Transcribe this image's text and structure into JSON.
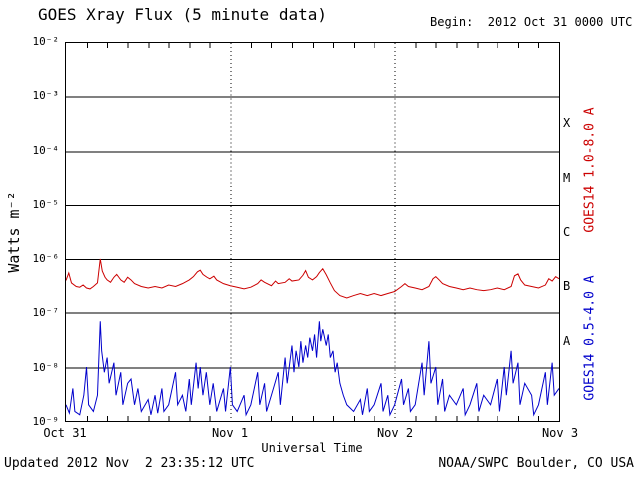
{
  "header": {
    "title": "GOES Xray Flux (5 minute data)",
    "begin_label": "Begin:  2012 Oct 31 0000 UTC"
  },
  "footer": {
    "updated": "Updated 2012 Nov  2 23:35:12 UTC",
    "source": "NOAA/SWPC Boulder, CO USA"
  },
  "chart_data": {
    "type": "line",
    "title": "GOES Xray Flux (5 minute data)",
    "xlabel": "Universal Time",
    "ylabel": "Watts m⁻²",
    "x_unit": "hours since 2012 Oct 31 0000 UTC",
    "xlim": [
      0,
      72
    ],
    "ylim_log10": [
      -9,
      -2
    ],
    "grid": {
      "h_lines_log10": [
        -3,
        -4,
        -5,
        -6,
        -7,
        -8
      ],
      "v_dotted_t": [
        24,
        48
      ],
      "minor_tick_hours": 3
    },
    "y_ticks": [
      {
        "log10": -2,
        "label": "10⁻²"
      },
      {
        "log10": -3,
        "label": "10⁻³"
      },
      {
        "log10": -4,
        "label": "10⁻⁴"
      },
      {
        "log10": -5,
        "label": "10⁻⁵"
      },
      {
        "log10": -6,
        "label": "10⁻⁶"
      },
      {
        "log10": -7,
        "label": "10⁻⁷"
      },
      {
        "log10": -8,
        "label": "10⁻⁸"
      },
      {
        "log10": -9,
        "label": "10⁻⁹"
      }
    ],
    "x_ticks": [
      {
        "t": 0,
        "label": "Oct 31"
      },
      {
        "t": 24,
        "label": "Nov 1"
      },
      {
        "t": 48,
        "label": "Nov 2"
      },
      {
        "t": 72,
        "label": "Nov 3"
      }
    ],
    "flare_classes": [
      {
        "label": "X",
        "log10_mid": -3.5
      },
      {
        "label": "M",
        "log10_mid": -4.5
      },
      {
        "label": "C",
        "log10_mid": -5.5
      },
      {
        "label": "B",
        "log10_mid": -6.5
      },
      {
        "label": "A",
        "log10_mid": -7.5
      }
    ],
    "series": [
      {
        "id": "long",
        "name": "GOES14 1.0-8.0 A",
        "color": "#cc0000",
        "points": [
          [
            0,
            4e-07
          ],
          [
            0.4,
            5.5e-07
          ],
          [
            0.8,
            3.6e-07
          ],
          [
            1.5,
            3.1e-07
          ],
          [
            2,
            3e-07
          ],
          [
            2.5,
            3.3e-07
          ],
          [
            3,
            2.9e-07
          ],
          [
            3.5,
            2.8e-07
          ],
          [
            4,
            3.1e-07
          ],
          [
            4.6,
            3.6e-07
          ],
          [
            5,
            1e-06
          ],
          [
            5.3,
            6e-07
          ],
          [
            5.7,
            4.6e-07
          ],
          [
            6,
            4.1e-07
          ],
          [
            6.5,
            3.7e-07
          ],
          [
            7,
            4.6e-07
          ],
          [
            7.4,
            5.2e-07
          ],
          [
            8,
            4.1e-07
          ],
          [
            8.5,
            3.7e-07
          ],
          [
            9,
            4.6e-07
          ],
          [
            9.5,
            4.1e-07
          ],
          [
            10,
            3.5e-07
          ],
          [
            11,
            3.1e-07
          ],
          [
            12,
            2.9e-07
          ],
          [
            13,
            3.1e-07
          ],
          [
            14,
            2.9e-07
          ],
          [
            15,
            3.3e-07
          ],
          [
            16,
            3.1e-07
          ],
          [
            17,
            3.5e-07
          ],
          [
            18,
            4.1e-07
          ],
          [
            18.6,
            4.7e-07
          ],
          [
            19.2,
            5.8e-07
          ],
          [
            19.6,
            6.2e-07
          ],
          [
            20,
            5.2e-07
          ],
          [
            20.6,
            4.6e-07
          ],
          [
            21,
            4.3e-07
          ],
          [
            21.6,
            4.8e-07
          ],
          [
            22,
            4.1e-07
          ],
          [
            23,
            3.5e-07
          ],
          [
            24,
            3.2e-07
          ],
          [
            25,
            3e-07
          ],
          [
            26,
            2.8e-07
          ],
          [
            27,
            3e-07
          ],
          [
            28,
            3.5e-07
          ],
          [
            28.5,
            4.1e-07
          ],
          [
            29,
            3.7e-07
          ],
          [
            30,
            3.2e-07
          ],
          [
            30.6,
            3.9e-07
          ],
          [
            31,
            3.5e-07
          ],
          [
            32,
            3.7e-07
          ],
          [
            32.6,
            4.3e-07
          ],
          [
            33,
            3.9e-07
          ],
          [
            34,
            4.1e-07
          ],
          [
            34.6,
            5e-07
          ],
          [
            35,
            6.1e-07
          ],
          [
            35.4,
            4.6e-07
          ],
          [
            36,
            4.1e-07
          ],
          [
            36.6,
            4.7e-07
          ],
          [
            37,
            5.6e-07
          ],
          [
            37.5,
            6.6e-07
          ],
          [
            38,
            5.1e-07
          ],
          [
            38.6,
            3.6e-07
          ],
          [
            39.2,
            2.6e-07
          ],
          [
            40,
            2.1e-07
          ],
          [
            41,
            1.9e-07
          ],
          [
            42,
            2.1e-07
          ],
          [
            43,
            2.3e-07
          ],
          [
            44,
            2.1e-07
          ],
          [
            45,
            2.3e-07
          ],
          [
            46,
            2.1e-07
          ],
          [
            47,
            2.3e-07
          ],
          [
            48,
            2.5e-07
          ],
          [
            49,
            3.1e-07
          ],
          [
            49.5,
            3.5e-07
          ],
          [
            50,
            3.1e-07
          ],
          [
            51,
            2.9e-07
          ],
          [
            52,
            2.7e-07
          ],
          [
            53,
            3.1e-07
          ],
          [
            53.6,
            4.3e-07
          ],
          [
            54,
            4.7e-07
          ],
          [
            54.5,
            4.1e-07
          ],
          [
            55,
            3.5e-07
          ],
          [
            56,
            3.1e-07
          ],
          [
            57,
            2.9e-07
          ],
          [
            58,
            2.7e-07
          ],
          [
            59,
            2.9e-07
          ],
          [
            60,
            2.7e-07
          ],
          [
            61,
            2.6e-07
          ],
          [
            62,
            2.7e-07
          ],
          [
            63,
            2.9e-07
          ],
          [
            64,
            2.7e-07
          ],
          [
            65,
            3.1e-07
          ],
          [
            65.5,
            4.9e-07
          ],
          [
            66,
            5.3e-07
          ],
          [
            66.4,
            4.1e-07
          ],
          [
            67,
            3.3e-07
          ],
          [
            68,
            3.1e-07
          ],
          [
            69,
            2.9e-07
          ],
          [
            70,
            3.3e-07
          ],
          [
            70.5,
            4.3e-07
          ],
          [
            71,
            3.9e-07
          ],
          [
            71.5,
            4.7e-07
          ],
          [
            72,
            4.3e-07
          ]
        ]
      },
      {
        "id": "short",
        "name": "GOES14 0.5-4.0 A",
        "color": "#0000cc",
        "points": [
          [
            0,
            2e-09
          ],
          [
            0.5,
            1.4e-09
          ],
          [
            1,
            4e-09
          ],
          [
            1.3,
            1.5e-09
          ],
          [
            2,
            1.3e-09
          ],
          [
            2.6,
            3e-09
          ],
          [
            3,
            1e-08
          ],
          [
            3.3,
            2e-09
          ],
          [
            4,
            1.5e-09
          ],
          [
            4.6,
            3e-09
          ],
          [
            5,
            7e-08
          ],
          [
            5.2,
            2e-08
          ],
          [
            5.6,
            8e-09
          ],
          [
            6,
            1.5e-08
          ],
          [
            6.3,
            5e-09
          ],
          [
            7,
            1.2e-08
          ],
          [
            7.3,
            3e-09
          ],
          [
            8,
            8e-09
          ],
          [
            8.3,
            2e-09
          ],
          [
            9,
            5e-09
          ],
          [
            9.5,
            6e-09
          ],
          [
            10,
            2e-09
          ],
          [
            10.5,
            4e-09
          ],
          [
            11,
            1.5e-09
          ],
          [
            12,
            2.5e-09
          ],
          [
            12.4,
            1.3e-09
          ],
          [
            13,
            3e-09
          ],
          [
            13.4,
            1.4e-09
          ],
          [
            14,
            4e-09
          ],
          [
            14.3,
            1.5e-09
          ],
          [
            15,
            2e-09
          ],
          [
            16,
            8e-09
          ],
          [
            16.3,
            2e-09
          ],
          [
            17,
            3e-09
          ],
          [
            17.5,
            1.5e-09
          ],
          [
            18,
            6e-09
          ],
          [
            18.3,
            2e-09
          ],
          [
            19,
            1.2e-08
          ],
          [
            19.3,
            4e-09
          ],
          [
            19.6,
            1e-08
          ],
          [
            20,
            3e-09
          ],
          [
            20.5,
            8e-09
          ],
          [
            21,
            2e-09
          ],
          [
            21.5,
            5e-09
          ],
          [
            22,
            1.5e-09
          ],
          [
            23,
            4e-09
          ],
          [
            23.3,
            1.5e-09
          ],
          [
            24,
            1e-08
          ],
          [
            24.3,
            2e-09
          ],
          [
            25,
            1.5e-09
          ],
          [
            26,
            3e-09
          ],
          [
            26.3,
            1.3e-09
          ],
          [
            27,
            2e-09
          ],
          [
            28,
            8e-09
          ],
          [
            28.3,
            2e-09
          ],
          [
            29,
            5e-09
          ],
          [
            29.3,
            1.5e-09
          ],
          [
            30,
            3e-09
          ],
          [
            31,
            8e-09
          ],
          [
            31.3,
            2e-09
          ],
          [
            32,
            1.5e-08
          ],
          [
            32.3,
            5e-09
          ],
          [
            33,
            2.5e-08
          ],
          [
            33.3,
            8e-09
          ],
          [
            33.6,
            2e-08
          ],
          [
            34,
            1e-08
          ],
          [
            34.3,
            3e-08
          ],
          [
            34.6,
            1.2e-08
          ],
          [
            35,
            2.5e-08
          ],
          [
            35.3,
            1.5e-08
          ],
          [
            35.6,
            3.5e-08
          ],
          [
            36,
            2e-08
          ],
          [
            36.3,
            4e-08
          ],
          [
            36.6,
            1.5e-08
          ],
          [
            37,
            7e-08
          ],
          [
            37.2,
            3e-08
          ],
          [
            37.5,
            5e-08
          ],
          [
            38,
            2.5e-08
          ],
          [
            38.3,
            4e-08
          ],
          [
            38.6,
            1.5e-08
          ],
          [
            39,
            2e-08
          ],
          [
            39.3,
            8e-09
          ],
          [
            39.6,
            1.2e-08
          ],
          [
            40,
            5e-09
          ],
          [
            40.5,
            3e-09
          ],
          [
            41,
            2e-09
          ],
          [
            42,
            1.5e-09
          ],
          [
            43,
            2.5e-09
          ],
          [
            43.3,
            1.3e-09
          ],
          [
            44,
            4e-09
          ],
          [
            44.3,
            1.5e-09
          ],
          [
            45,
            2e-09
          ],
          [
            46,
            5e-09
          ],
          [
            46.3,
            1.5e-09
          ],
          [
            47,
            3e-09
          ],
          [
            47.3,
            1.3e-09
          ],
          [
            48,
            2e-09
          ],
          [
            49,
            6e-09
          ],
          [
            49.3,
            2e-09
          ],
          [
            50,
            4e-09
          ],
          [
            50.3,
            1.5e-09
          ],
          [
            51,
            2e-09
          ],
          [
            52,
            1.2e-08
          ],
          [
            52.3,
            3e-09
          ],
          [
            53,
            3e-08
          ],
          [
            53.3,
            5e-09
          ],
          [
            54,
            1e-08
          ],
          [
            54.3,
            2e-09
          ],
          [
            55,
            6e-09
          ],
          [
            55.3,
            1.5e-09
          ],
          [
            56,
            3e-09
          ],
          [
            57,
            2e-09
          ],
          [
            58,
            4e-09
          ],
          [
            58.3,
            1.3e-09
          ],
          [
            59,
            2e-09
          ],
          [
            60,
            5e-09
          ],
          [
            60.3,
            1.5e-09
          ],
          [
            61,
            3e-09
          ],
          [
            62,
            2e-09
          ],
          [
            63,
            6e-09
          ],
          [
            63.3,
            1.5e-09
          ],
          [
            64,
            1e-08
          ],
          [
            64.3,
            3e-09
          ],
          [
            65,
            2e-08
          ],
          [
            65.3,
            5e-09
          ],
          [
            66,
            1.2e-08
          ],
          [
            66.3,
            2e-09
          ],
          [
            67,
            5e-09
          ],
          [
            68,
            3e-09
          ],
          [
            68.3,
            1.3e-09
          ],
          [
            69,
            2e-09
          ],
          [
            70,
            8e-09
          ],
          [
            70.3,
            2e-09
          ],
          [
            71,
            1.2e-08
          ],
          [
            71.3,
            3e-09
          ],
          [
            72,
            4e-09
          ]
        ]
      }
    ],
    "legend_position": "right-rotated",
    "grid_on": true
  }
}
